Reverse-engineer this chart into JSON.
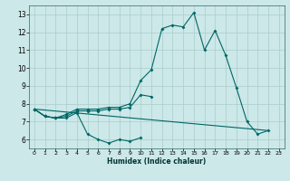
{
  "xlabel": "Humidex (Indice chaleur)",
  "x_values": [
    0,
    1,
    2,
    3,
    4,
    5,
    6,
    7,
    8,
    9,
    10,
    11,
    12,
    13,
    14,
    15,
    16,
    17,
    18,
    19,
    20,
    21,
    22,
    23
  ],
  "line1": [
    7.7,
    7.3,
    7.2,
    7.2,
    7.5,
    6.3,
    6.0,
    5.8,
    6.0,
    5.9,
    6.1,
    null,
    null,
    null,
    null,
    null,
    null,
    null,
    null,
    null,
    null,
    null,
    null,
    null
  ],
  "line2": [
    7.7,
    7.3,
    7.2,
    7.3,
    7.6,
    7.6,
    7.6,
    7.7,
    7.7,
    7.8,
    8.5,
    8.4,
    null,
    null,
    null,
    null,
    null,
    null,
    null,
    null,
    null,
    null,
    null,
    null
  ],
  "line3": [
    7.7,
    7.3,
    7.2,
    7.4,
    7.7,
    7.7,
    7.7,
    7.8,
    7.8,
    8.0,
    9.3,
    9.9,
    12.2,
    12.4,
    12.3,
    13.1,
    11.0,
    12.1,
    10.7,
    8.9,
    7.0,
    6.3,
    6.5,
    null
  ],
  "line4_x": [
    0,
    22
  ],
  "line4_y": [
    7.7,
    6.5
  ],
  "bg_color": "#cce8e8",
  "grid_color": "#aacccc",
  "line_color": "#006666",
  "ylim": [
    5.5,
    13.5
  ],
  "xlim": [
    -0.5,
    23.5
  ],
  "yticks": [
    6,
    7,
    8,
    9,
    10,
    11,
    12,
    13
  ],
  "xticks": [
    0,
    1,
    2,
    3,
    4,
    5,
    6,
    7,
    8,
    9,
    10,
    11,
    12,
    13,
    14,
    15,
    16,
    17,
    18,
    19,
    20,
    21,
    22,
    23
  ]
}
